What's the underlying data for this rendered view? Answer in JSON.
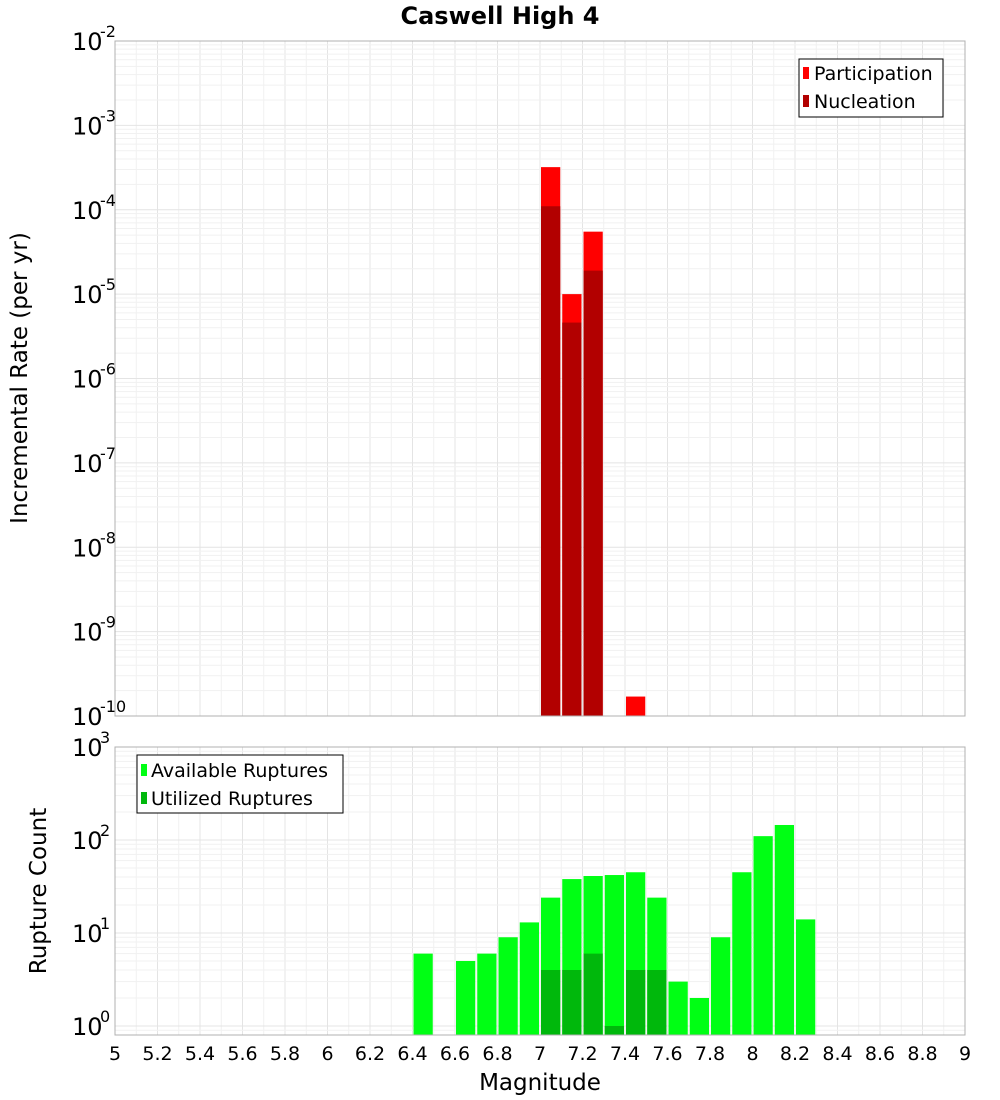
{
  "chart_data": [
    {
      "type": "bar",
      "title": "Caswell High 4",
      "xlabel": "Magnitude",
      "ylabel": "Incremental Rate (per yr)",
      "yscale": "log",
      "xlim": [
        5,
        9
      ],
      "ylim": [
        1e-10,
        0.01
      ],
      "bin_width": 0.1,
      "legend": {
        "placement": "top-right"
      },
      "y_ticks": [
        {
          "base": "10",
          "exp": "-10"
        },
        {
          "base": "10",
          "exp": "-9"
        },
        {
          "base": "10",
          "exp": "-8"
        },
        {
          "base": "10",
          "exp": "-7"
        },
        {
          "base": "10",
          "exp": "-6"
        },
        {
          "base": "10",
          "exp": "-5"
        },
        {
          "base": "10",
          "exp": "-4"
        },
        {
          "base": "10",
          "exp": "-3"
        },
        {
          "base": "10",
          "exp": "-2"
        }
      ],
      "series": [
        {
          "name": "Participation",
          "color": "#ff0000",
          "x": [
            7.05,
            7.15,
            7.25,
            7.45
          ],
          "values": [
            0.00032,
            1e-05,
            5.5e-05,
            1.7e-10
          ]
        },
        {
          "name": "Nucleation",
          "color": "#b20000",
          "x": [
            7.05,
            7.15,
            7.25
          ],
          "values": [
            0.00011,
            4.6e-06,
            1.9e-05
          ]
        }
      ]
    },
    {
      "type": "bar",
      "title": "",
      "xlabel": "Magnitude",
      "ylabel": "Rupture Count",
      "yscale": "log",
      "xlim": [
        5,
        9
      ],
      "ylim": [
        0.8,
        1000
      ],
      "bin_width": 0.1,
      "legend": {
        "placement": "top-left"
      },
      "y_ticks": [
        {
          "base": "10",
          "exp": "0"
        },
        {
          "base": "10",
          "exp": "1"
        },
        {
          "base": "10",
          "exp": "2"
        },
        {
          "base": "10",
          "exp": "3"
        }
      ],
      "series": [
        {
          "name": "Available Ruptures",
          "color": "#00ff14",
          "x": [
            6.45,
            6.65,
            6.75,
            6.85,
            6.95,
            7.05,
            7.15,
            7.25,
            7.35,
            7.45,
            7.55,
            7.65,
            7.75,
            7.85,
            7.95,
            8.05,
            8.15,
            8.25
          ],
          "values": [
            6,
            5,
            6,
            9,
            13,
            24,
            38,
            41,
            42,
            45,
            24,
            3,
            2,
            9,
            45,
            110,
            145,
            14
          ]
        },
        {
          "name": "Utilized Ruptures",
          "color": "#00b80c",
          "x": [
            7.05,
            7.15,
            7.25,
            7.35,
            7.45,
            7.55
          ],
          "values": [
            4,
            4,
            6,
            1,
            4,
            4
          ]
        }
      ]
    }
  ],
  "x_tick_labels": [
    "5",
    "5.2",
    "5.4",
    "5.6",
    "5.8",
    "6",
    "6.2",
    "6.4",
    "6.6",
    "6.8",
    "7",
    "7.2",
    "7.4",
    "7.6",
    "7.8",
    "8",
    "8.2",
    "8.4",
    "8.6",
    "8.8",
    "9"
  ]
}
